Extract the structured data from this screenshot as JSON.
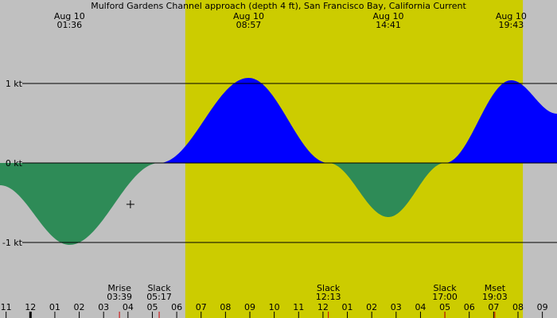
{
  "chart_data": {
    "type": "area",
    "title": "Mulford Gardens Channel approach (depth 4 ft), San Francisco Bay, California Current",
    "y_unit": "kt",
    "ylim": [
      -1.95,
      2.05
    ],
    "y_ticks": [
      {
        "value": 1,
        "label": "1 kt"
      },
      {
        "value": 0,
        "label": "0 kt"
      },
      {
        "value": -1,
        "label": "-1 kt"
      }
    ],
    "xlim": [
      -1.25,
      21.6
    ],
    "daylight": {
      "start": 6.35,
      "end": 20.2
    },
    "hour_ticks": [
      {
        "h": -1,
        "label": "11"
      },
      {
        "h": 0,
        "label": "12"
      },
      {
        "h": 1,
        "label": "01"
      },
      {
        "h": 2,
        "label": "02"
      },
      {
        "h": 3,
        "label": "03"
      },
      {
        "h": 4,
        "label": "04"
      },
      {
        "h": 5,
        "label": "05"
      },
      {
        "h": 6,
        "label": "06"
      },
      {
        "h": 7,
        "label": "07"
      },
      {
        "h": 8,
        "label": "08"
      },
      {
        "h": 9,
        "label": "09"
      },
      {
        "h": 10,
        "label": "10"
      },
      {
        "h": 11,
        "label": "11"
      },
      {
        "h": 12,
        "label": "12"
      },
      {
        "h": 13,
        "label": "01"
      },
      {
        "h": 14,
        "label": "02"
      },
      {
        "h": 15,
        "label": "03"
      },
      {
        "h": 16,
        "label": "04"
      },
      {
        "h": 17,
        "label": "05"
      },
      {
        "h": 18,
        "label": "06"
      },
      {
        "h": 19,
        "label": "07"
      },
      {
        "h": 20,
        "label": "08"
      },
      {
        "h": 21,
        "label": "09"
      }
    ],
    "current_points": [
      {
        "h": -1.25,
        "v": -0.28
      },
      {
        "h": 1.6,
        "v": -1.03
      },
      {
        "h": 5.28,
        "v": 0
      },
      {
        "h": 8.95,
        "v": 1.07
      },
      {
        "h": 12.22,
        "v": 0
      },
      {
        "h": 14.68,
        "v": -0.68
      },
      {
        "h": 17.0,
        "v": 0
      },
      {
        "h": 19.72,
        "v": 1.04
      },
      {
        "h": 21.6,
        "v": 0.62
      }
    ],
    "peak_labels": [
      {
        "h": 1.6,
        "line1": "Aug 10",
        "line2": "01:36"
      },
      {
        "h": 8.95,
        "line1": "Aug 10",
        "line2": "08:57"
      },
      {
        "h": 14.68,
        "line1": "Aug 10",
        "line2": "14:41"
      },
      {
        "h": 19.72,
        "line1": "Aug 10",
        "line2": "19:43"
      }
    ],
    "event_labels": [
      {
        "h": 3.65,
        "line1": "Mrise",
        "line2": "03:39"
      },
      {
        "h": 5.28,
        "line1": "Slack",
        "line2": "05:17"
      },
      {
        "h": 12.22,
        "line1": "Slack",
        "line2": "12:13"
      },
      {
        "h": 17.0,
        "line1": "Slack",
        "line2": "17:00"
      },
      {
        "h": 19.05,
        "line1": "Mset",
        "line2": "19:03"
      }
    ],
    "marker_ticks": [
      {
        "h": 3.65,
        "color": "#cc0000"
      },
      {
        "h": 5.28,
        "color": "#cc0000"
      },
      {
        "h": 12.22,
        "color": "#cc0000"
      },
      {
        "h": 17.0,
        "color": "#cc0000"
      },
      {
        "h": 19.05,
        "color": "#cc0000"
      }
    ],
    "crosshair": {
      "h": 4.1,
      "v": -0.52
    },
    "colors": {
      "background": "#c0c0c0",
      "daylight": "#cccc00",
      "flood": "#0000ff",
      "ebb": "#2e8b57",
      "grid": "#000000",
      "marker": "#cc0000"
    }
  }
}
